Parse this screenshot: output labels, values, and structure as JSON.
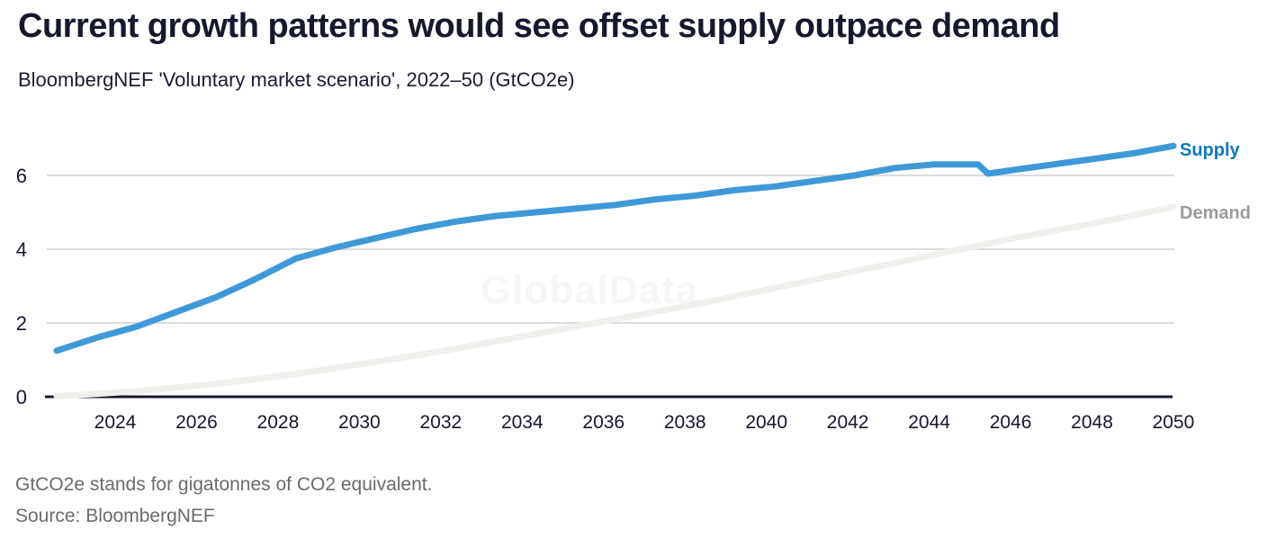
{
  "header": {
    "title": "Current growth patterns would see offset supply outpace demand",
    "subtitle": "BloombergNEF 'Voluntary market scenario', 2022–50 (GtCO2e)"
  },
  "watermark": {
    "text": "GlobalData"
  },
  "footer": {
    "note": "GtCO2e stands for gigatonnes of CO2 equivalent.",
    "source": "Source: BloombergNEF"
  },
  "colors": {
    "supply_line": "#3f99d9",
    "supply_label": "#0e79bc",
    "demand_line": "#f1f0ed",
    "demand_label": "#9b9b9b",
    "grid": "#dcdcdc",
    "axis": "#16182c",
    "tick_text": "#16182c",
    "footer_text": "#6b6b6b",
    "watermark": "#f7f6f4"
  },
  "chart_data": {
    "type": "line",
    "title": "Current growth patterns would see offset supply outpace demand",
    "subtitle": "BloombergNEF 'Voluntary market scenario', 2022–50 (GtCO2e)",
    "unit": "GtCO2e",
    "xlim": [
      2022,
      2050
    ],
    "ylim": [
      0,
      7.2
    ],
    "x_ticks": [
      2024,
      2026,
      2028,
      2030,
      2032,
      2034,
      2036,
      2038,
      2040,
      2042,
      2044,
      2046,
      2048,
      2050
    ],
    "y_ticks": [
      0,
      2,
      4,
      6
    ],
    "grid": "horizontal",
    "legend_position": "right-end-labels",
    "series": [
      {
        "name": "Supply",
        "x": [
          2022,
          2023,
          2024,
          2025,
          2026,
          2027,
          2028,
          2029,
          2030,
          2031,
          2032,
          2033,
          2034,
          2035,
          2036,
          2037,
          2038,
          2039,
          2040,
          2041,
          2042,
          2043,
          2044,
          2045.1,
          2045.35,
          2046,
          2047,
          2048,
          2049,
          2050
        ],
        "values": [
          1.25,
          1.6,
          1.9,
          2.3,
          2.7,
          3.2,
          3.75,
          4.05,
          4.3,
          4.55,
          4.75,
          4.9,
          5.0,
          5.1,
          5.2,
          5.35,
          5.45,
          5.6,
          5.7,
          5.85,
          6.0,
          6.2,
          6.3,
          6.3,
          6.05,
          6.15,
          6.3,
          6.45,
          6.6,
          6.8
        ]
      },
      {
        "name": "Demand",
        "x": [
          2022,
          2023,
          2024,
          2025,
          2026,
          2027,
          2028,
          2029,
          2030,
          2031,
          2032,
          2033,
          2034,
          2035,
          2036,
          2037,
          2038,
          2039,
          2040,
          2041,
          2042,
          2043,
          2044,
          2045,
          2046,
          2047,
          2048,
          2049,
          2050
        ],
        "values": [
          0.02,
          0.08,
          0.15,
          0.25,
          0.35,
          0.48,
          0.62,
          0.78,
          0.95,
          1.12,
          1.3,
          1.5,
          1.7,
          1.9,
          2.1,
          2.3,
          2.5,
          2.72,
          2.95,
          3.17,
          3.4,
          3.62,
          3.85,
          4.07,
          4.3,
          4.5,
          4.7,
          4.92,
          5.15
        ]
      }
    ]
  }
}
